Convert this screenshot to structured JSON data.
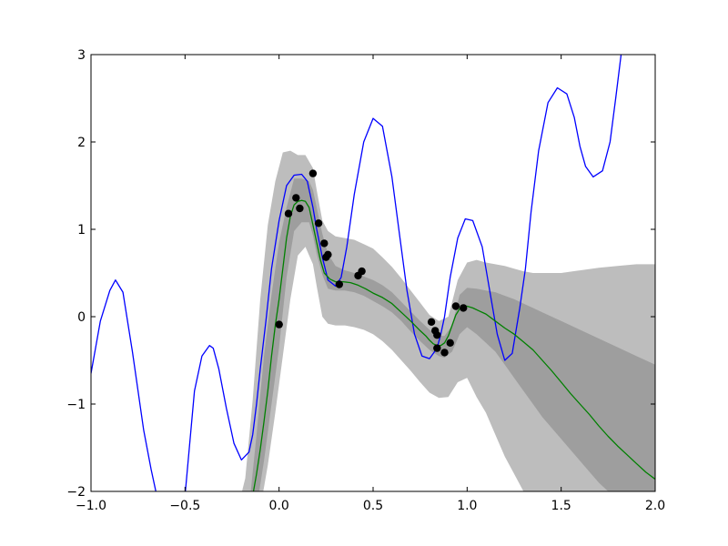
{
  "chart_data": {
    "type": "line",
    "title": "",
    "xlabel": "",
    "ylabel": "",
    "xlim": [
      -1.0,
      2.0
    ],
    "ylim": [
      -2,
      3
    ],
    "grid": false,
    "xticks": [
      -1.0,
      -0.5,
      0.0,
      0.5,
      1.0,
      1.5,
      2.0
    ],
    "xtick_labels": [
      "−1.0",
      "−0.5",
      "0.0",
      "0.5",
      "1.0",
      "1.5",
      "2.0"
    ],
    "yticks": [
      -2,
      -1,
      0,
      1,
      2,
      3
    ],
    "ytick_labels": [
      "−2",
      "−1",
      "0",
      "1",
      "2",
      "3"
    ],
    "colors": {
      "true_function": "#0000ff",
      "mean": "#008000",
      "band_outer": "#bdbdbd",
      "band_inner": "#9e9e9e",
      "points": "#000000"
    },
    "series": [
      {
        "type": "line",
        "x": [
          -1.0,
          -0.95,
          -0.9,
          -0.87,
          -0.83,
          -0.78,
          -0.72,
          -0.68,
          -0.65,
          -0.6,
          -0.55,
          -0.5,
          -0.45,
          -0.41,
          -0.37,
          -0.35,
          -0.32,
          -0.28,
          -0.24,
          -0.2,
          -0.16,
          -0.14,
          -0.12,
          -0.1,
          -0.07,
          -0.04,
          0.0,
          0.04,
          0.08,
          0.12,
          0.15,
          0.18,
          0.2,
          0.23,
          0.26,
          0.3,
          0.33,
          0.36,
          0.4,
          0.45,
          0.5,
          0.55,
          0.6,
          0.64,
          0.68,
          0.72,
          0.76,
          0.8,
          0.84,
          0.86,
          0.88,
          0.91,
          0.95,
          0.99,
          1.03,
          1.08,
          1.12,
          1.16,
          1.2,
          1.24,
          1.28,
          1.31,
          1.34,
          1.38,
          1.43,
          1.48,
          1.53,
          1.57,
          1.6,
          1.63,
          1.67,
          1.72,
          1.76,
          1.79,
          1.83,
          1.87,
          1.91,
          1.95,
          1.99,
          2.0
        ],
        "y": [
          -0.65,
          -0.05,
          0.3,
          0.42,
          0.28,
          -0.4,
          -1.3,
          -1.75,
          -2.05,
          -2.8,
          -2.6,
          -2.05,
          -0.85,
          -0.45,
          -0.33,
          -0.36,
          -0.6,
          -1.05,
          -1.45,
          -1.64,
          -1.55,
          -1.35,
          -1.0,
          -0.6,
          -0.05,
          0.55,
          1.1,
          1.5,
          1.62,
          1.63,
          1.55,
          1.25,
          1.0,
          0.68,
          0.42,
          0.35,
          0.45,
          0.8,
          1.4,
          2.0,
          2.27,
          2.18,
          1.6,
          0.95,
          0.3,
          -0.2,
          -0.45,
          -0.48,
          -0.36,
          -0.2,
          0.0,
          0.45,
          0.9,
          1.12,
          1.1,
          0.8,
          0.3,
          -0.2,
          -0.5,
          -0.42,
          0.1,
          0.55,
          1.2,
          1.9,
          2.45,
          2.62,
          2.55,
          2.28,
          1.95,
          1.72,
          1.6,
          1.67,
          2.0,
          2.5,
          3.2,
          3.5,
          3.5,
          3.5,
          3.5,
          3.5
        ]
      },
      {
        "type": "line",
        "x": [
          -0.14,
          -0.12,
          -0.1,
          -0.08,
          -0.06,
          -0.04,
          -0.02,
          0.0,
          0.02,
          0.04,
          0.06,
          0.08,
          0.1,
          0.12,
          0.14,
          0.16,
          0.18,
          0.2,
          0.22,
          0.24,
          0.27,
          0.3,
          0.34,
          0.38,
          0.42,
          0.46,
          0.5,
          0.55,
          0.6,
          0.65,
          0.7,
          0.75,
          0.78,
          0.8,
          0.82,
          0.84,
          0.86,
          0.88,
          0.9,
          0.92,
          0.94,
          0.96,
          0.98,
          1.0,
          1.03,
          1.06,
          1.1,
          1.15,
          1.2,
          1.25,
          1.3,
          1.35,
          1.4,
          1.45,
          1.5,
          1.55,
          1.6,
          1.65,
          1.7,
          1.75,
          1.8,
          1.85,
          1.9,
          1.95,
          2.0
        ],
        "y": [
          -2.05,
          -1.8,
          -1.52,
          -1.2,
          -0.85,
          -0.45,
          -0.1,
          0.2,
          0.55,
          0.9,
          1.15,
          1.28,
          1.32,
          1.33,
          1.32,
          1.25,
          1.05,
          0.85,
          0.65,
          0.5,
          0.43,
          0.4,
          0.4,
          0.39,
          0.36,
          0.32,
          0.27,
          0.22,
          0.15,
          0.05,
          -0.05,
          -0.16,
          -0.22,
          -0.27,
          -0.31,
          -0.33,
          -0.33,
          -0.3,
          -0.22,
          -0.1,
          0.02,
          0.09,
          0.12,
          0.12,
          0.1,
          0.07,
          0.03,
          -0.05,
          -0.13,
          -0.2,
          -0.29,
          -0.38,
          -0.5,
          -0.62,
          -0.75,
          -0.88,
          -1.0,
          -1.12,
          -1.25,
          -1.37,
          -1.48,
          -1.58,
          -1.68,
          -1.78,
          -1.86
        ]
      },
      {
        "type": "band",
        "x": [
          -0.3,
          -0.26,
          -0.22,
          -0.18,
          -0.14,
          -0.1,
          -0.06,
          -0.02,
          0.02,
          0.06,
          0.1,
          0.14,
          0.18,
          0.2,
          0.23,
          0.26,
          0.3,
          0.35,
          0.4,
          0.45,
          0.5,
          0.55,
          0.6,
          0.65,
          0.7,
          0.75,
          0.8,
          0.85,
          0.9,
          0.95,
          1.0,
          1.05,
          1.1,
          1.15,
          1.2,
          1.25,
          1.3,
          1.35,
          1.4,
          1.5,
          1.6,
          1.7,
          1.8,
          1.9,
          2.0
        ],
        "lower": [
          -2.2,
          -2.2,
          -2.2,
          -2.2,
          -2.2,
          -2.2,
          -1.7,
          -1.1,
          -0.45,
          0.2,
          0.7,
          0.8,
          0.6,
          0.35,
          0.0,
          -0.08,
          -0.1,
          -0.1,
          -0.12,
          -0.15,
          -0.2,
          -0.28,
          -0.38,
          -0.5,
          -0.62,
          -0.75,
          -0.87,
          -0.93,
          -0.92,
          -0.75,
          -0.7,
          -0.92,
          -1.1,
          -1.35,
          -1.6,
          -1.8,
          -2.0,
          -2.2,
          -2.2,
          -2.2,
          -2.2,
          -2.2,
          -2.2,
          -2.2,
          -2.2
        ],
        "upper": [
          -2.2,
          -2.2,
          -2.2,
          -1.85,
          -0.95,
          0.2,
          1.05,
          1.55,
          1.88,
          1.9,
          1.85,
          1.85,
          1.7,
          1.45,
          1.1,
          0.98,
          0.92,
          0.9,
          0.88,
          0.83,
          0.78,
          0.68,
          0.57,
          0.44,
          0.3,
          0.16,
          0.02,
          -0.05,
          0.0,
          0.42,
          0.62,
          0.65,
          0.62,
          0.6,
          0.58,
          0.55,
          0.52,
          0.5,
          0.5,
          0.5,
          0.53,
          0.56,
          0.58,
          0.6,
          0.6
        ]
      },
      {
        "type": "band",
        "x": [
          -0.24,
          -0.2,
          -0.16,
          -0.12,
          -0.08,
          -0.04,
          0.0,
          0.04,
          0.08,
          0.12,
          0.16,
          0.18,
          0.2,
          0.23,
          0.26,
          0.3,
          0.35,
          0.4,
          0.45,
          0.5,
          0.55,
          0.6,
          0.65,
          0.7,
          0.75,
          0.8,
          0.85,
          0.88,
          0.92,
          0.96,
          1.0,
          1.05,
          1.1,
          1.15,
          1.2,
          1.25,
          1.3,
          1.35,
          1.4,
          1.5,
          1.6,
          1.7,
          1.8,
          1.9,
          2.0
        ],
        "lower": [
          -2.2,
          -2.2,
          -2.2,
          -2.2,
          -1.65,
          -1.0,
          -0.35,
          0.45,
          0.98,
          1.08,
          1.08,
          0.93,
          0.72,
          0.48,
          0.32,
          0.3,
          0.3,
          0.28,
          0.24,
          0.18,
          0.12,
          0.05,
          -0.05,
          -0.17,
          -0.28,
          -0.38,
          -0.45,
          -0.47,
          -0.4,
          -0.2,
          -0.12,
          -0.2,
          -0.3,
          -0.4,
          -0.55,
          -0.7,
          -0.85,
          -1.0,
          -1.15,
          -1.4,
          -1.65,
          -1.9,
          -2.1,
          -2.2,
          -2.2
        ],
        "upper": [
          -2.2,
          -2.2,
          -2.2,
          -1.35,
          -0.45,
          0.25,
          0.85,
          1.25,
          1.58,
          1.58,
          1.55,
          1.45,
          1.25,
          0.95,
          0.72,
          0.58,
          0.53,
          0.5,
          0.46,
          0.42,
          0.36,
          0.28,
          0.17,
          0.06,
          -0.05,
          -0.15,
          -0.22,
          -0.22,
          -0.1,
          0.25,
          0.33,
          0.32,
          0.3,
          0.28,
          0.24,
          0.2,
          0.15,
          0.1,
          0.05,
          -0.05,
          -0.15,
          -0.25,
          -0.35,
          -0.45,
          -0.55
        ]
      },
      {
        "type": "scatter",
        "points": [
          [
            0.0,
            -0.09
          ],
          [
            0.05,
            1.18
          ],
          [
            0.09,
            1.36
          ],
          [
            0.11,
            1.24
          ],
          [
            0.18,
            1.64
          ],
          [
            0.21,
            1.07
          ],
          [
            0.24,
            0.84
          ],
          [
            0.25,
            0.68
          ],
          [
            0.26,
            0.71
          ],
          [
            0.32,
            0.37
          ],
          [
            0.42,
            0.47
          ],
          [
            0.44,
            0.52
          ],
          [
            0.81,
            -0.06
          ],
          [
            0.83,
            -0.16
          ],
          [
            0.84,
            -0.21
          ],
          [
            0.84,
            -0.36
          ],
          [
            0.88,
            -0.41
          ],
          [
            0.91,
            -0.3
          ],
          [
            0.94,
            0.12
          ],
          [
            0.98,
            0.1
          ]
        ]
      }
    ]
  }
}
